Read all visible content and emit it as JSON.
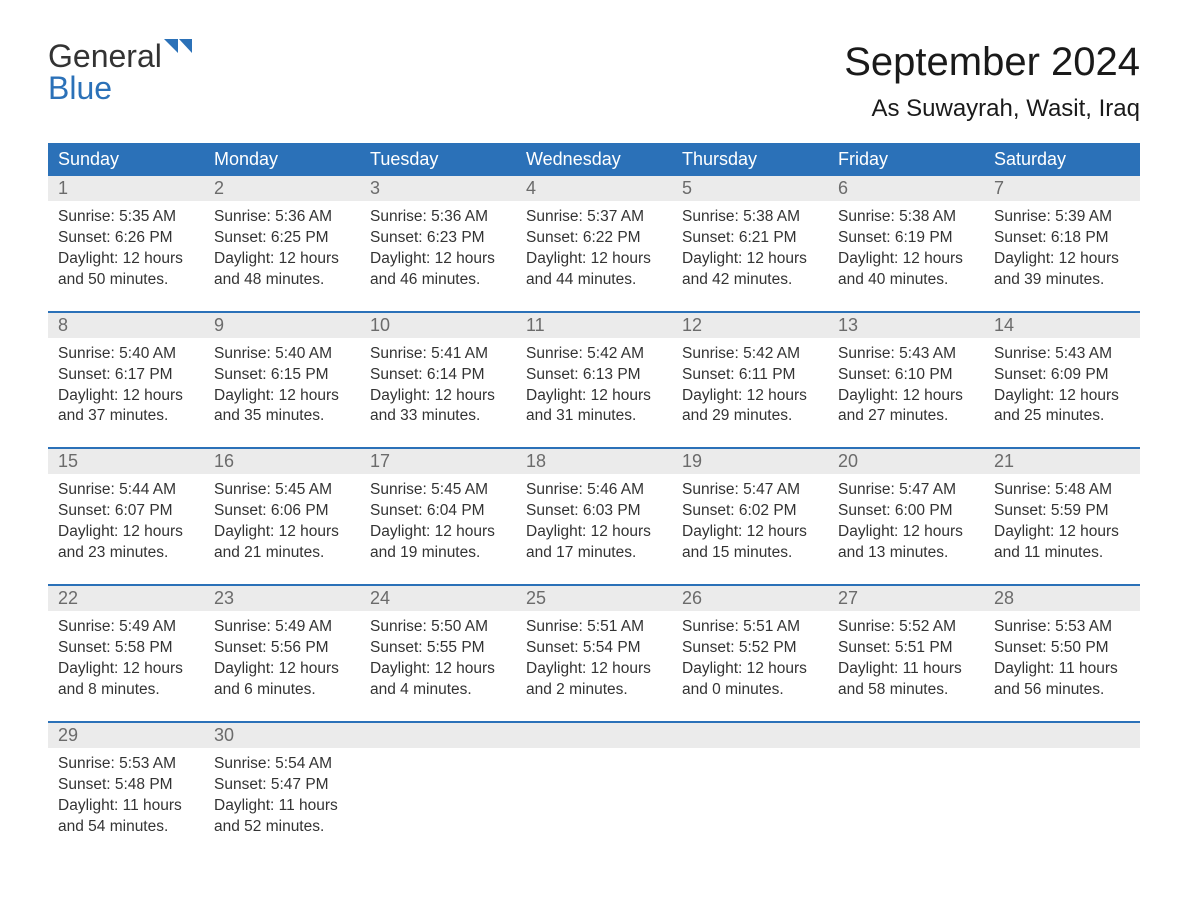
{
  "brand": {
    "word1": "General",
    "word2": "Blue"
  },
  "colors": {
    "accent": "#2b71b8",
    "header_bg": "#2b71b8",
    "header_text": "#ffffff",
    "daynum_bg": "#ebebeb",
    "daynum_text": "#6b6b6b",
    "body_text": "#333333",
    "page_bg": "#ffffff",
    "week_border": "#2b71b8"
  },
  "typography": {
    "month_title_pt": 40,
    "location_pt": 24,
    "dayheader_pt": 18,
    "daynum_pt": 18,
    "cell_pt": 15.5
  },
  "title": "September 2024",
  "location": "As Suwayrah, Wasit, Iraq",
  "day_names": [
    "Sunday",
    "Monday",
    "Tuesday",
    "Wednesday",
    "Thursday",
    "Friday",
    "Saturday"
  ],
  "weeks": [
    [
      {
        "n": "1",
        "sr": "5:35 AM",
        "ss": "6:26 PM",
        "dl1": "12 hours",
        "dl2": "and 50 minutes."
      },
      {
        "n": "2",
        "sr": "5:36 AM",
        "ss": "6:25 PM",
        "dl1": "12 hours",
        "dl2": "and 48 minutes."
      },
      {
        "n": "3",
        "sr": "5:36 AM",
        "ss": "6:23 PM",
        "dl1": "12 hours",
        "dl2": "and 46 minutes."
      },
      {
        "n": "4",
        "sr": "5:37 AM",
        "ss": "6:22 PM",
        "dl1": "12 hours",
        "dl2": "and 44 minutes."
      },
      {
        "n": "5",
        "sr": "5:38 AM",
        "ss": "6:21 PM",
        "dl1": "12 hours",
        "dl2": "and 42 minutes."
      },
      {
        "n": "6",
        "sr": "5:38 AM",
        "ss": "6:19 PM",
        "dl1": "12 hours",
        "dl2": "and 40 minutes."
      },
      {
        "n": "7",
        "sr": "5:39 AM",
        "ss": "6:18 PM",
        "dl1": "12 hours",
        "dl2": "and 39 minutes."
      }
    ],
    [
      {
        "n": "8",
        "sr": "5:40 AM",
        "ss": "6:17 PM",
        "dl1": "12 hours",
        "dl2": "and 37 minutes."
      },
      {
        "n": "9",
        "sr": "5:40 AM",
        "ss": "6:15 PM",
        "dl1": "12 hours",
        "dl2": "and 35 minutes."
      },
      {
        "n": "10",
        "sr": "5:41 AM",
        "ss": "6:14 PM",
        "dl1": "12 hours",
        "dl2": "and 33 minutes."
      },
      {
        "n": "11",
        "sr": "5:42 AM",
        "ss": "6:13 PM",
        "dl1": "12 hours",
        "dl2": "and 31 minutes."
      },
      {
        "n": "12",
        "sr": "5:42 AM",
        "ss": "6:11 PM",
        "dl1": "12 hours",
        "dl2": "and 29 minutes."
      },
      {
        "n": "13",
        "sr": "5:43 AM",
        "ss": "6:10 PM",
        "dl1": "12 hours",
        "dl2": "and 27 minutes."
      },
      {
        "n": "14",
        "sr": "5:43 AM",
        "ss": "6:09 PM",
        "dl1": "12 hours",
        "dl2": "and 25 minutes."
      }
    ],
    [
      {
        "n": "15",
        "sr": "5:44 AM",
        "ss": "6:07 PM",
        "dl1": "12 hours",
        "dl2": "and 23 minutes."
      },
      {
        "n": "16",
        "sr": "5:45 AM",
        "ss": "6:06 PM",
        "dl1": "12 hours",
        "dl2": "and 21 minutes."
      },
      {
        "n": "17",
        "sr": "5:45 AM",
        "ss": "6:04 PM",
        "dl1": "12 hours",
        "dl2": "and 19 minutes."
      },
      {
        "n": "18",
        "sr": "5:46 AM",
        "ss": "6:03 PM",
        "dl1": "12 hours",
        "dl2": "and 17 minutes."
      },
      {
        "n": "19",
        "sr": "5:47 AM",
        "ss": "6:02 PM",
        "dl1": "12 hours",
        "dl2": "and 15 minutes."
      },
      {
        "n": "20",
        "sr": "5:47 AM",
        "ss": "6:00 PM",
        "dl1": "12 hours",
        "dl2": "and 13 minutes."
      },
      {
        "n": "21",
        "sr": "5:48 AM",
        "ss": "5:59 PM",
        "dl1": "12 hours",
        "dl2": "and 11 minutes."
      }
    ],
    [
      {
        "n": "22",
        "sr": "5:49 AM",
        "ss": "5:58 PM",
        "dl1": "12 hours",
        "dl2": "and 8 minutes."
      },
      {
        "n": "23",
        "sr": "5:49 AM",
        "ss": "5:56 PM",
        "dl1": "12 hours",
        "dl2": "and 6 minutes."
      },
      {
        "n": "24",
        "sr": "5:50 AM",
        "ss": "5:55 PM",
        "dl1": "12 hours",
        "dl2": "and 4 minutes."
      },
      {
        "n": "25",
        "sr": "5:51 AM",
        "ss": "5:54 PM",
        "dl1": "12 hours",
        "dl2": "and 2 minutes."
      },
      {
        "n": "26",
        "sr": "5:51 AM",
        "ss": "5:52 PM",
        "dl1": "12 hours",
        "dl2": "and 0 minutes."
      },
      {
        "n": "27",
        "sr": "5:52 AM",
        "ss": "5:51 PM",
        "dl1": "11 hours",
        "dl2": "and 58 minutes."
      },
      {
        "n": "28",
        "sr": "5:53 AM",
        "ss": "5:50 PM",
        "dl1": "11 hours",
        "dl2": "and 56 minutes."
      }
    ],
    [
      {
        "n": "29",
        "sr": "5:53 AM",
        "ss": "5:48 PM",
        "dl1": "11 hours",
        "dl2": "and 54 minutes."
      },
      {
        "n": "30",
        "sr": "5:54 AM",
        "ss": "5:47 PM",
        "dl1": "11 hours",
        "dl2": "and 52 minutes."
      },
      null,
      null,
      null,
      null,
      null
    ]
  ],
  "labels": {
    "sunrise_prefix": "Sunrise: ",
    "sunset_prefix": "Sunset: ",
    "daylight_prefix": "Daylight: "
  }
}
